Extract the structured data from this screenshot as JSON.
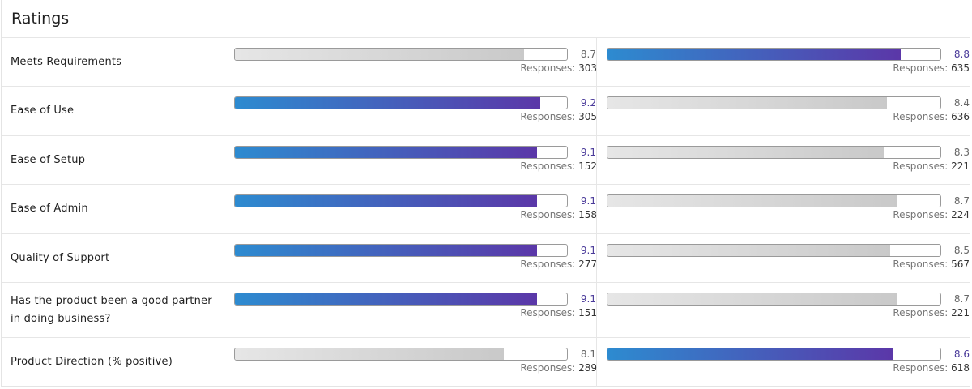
{
  "title": "Ratings",
  "responses_label": "Responses:",
  "colors": {
    "winner_start": "#2d8bd0",
    "winner_end": "#5b37a8",
    "neutral": "#d0d0d0"
  },
  "rows": [
    {
      "label": "Meets Requirements",
      "a": {
        "value": "8.7",
        "responses": "303",
        "winner": false
      },
      "b": {
        "value": "8.8",
        "responses": "635",
        "winner": true
      }
    },
    {
      "label": "Ease of Use",
      "a": {
        "value": "9.2",
        "responses": "305",
        "winner": true
      },
      "b": {
        "value": "8.4",
        "responses": "636",
        "winner": false
      }
    },
    {
      "label": "Ease of Setup",
      "a": {
        "value": "9.1",
        "responses": "152",
        "winner": true
      },
      "b": {
        "value": "8.3",
        "responses": "221",
        "winner": false
      }
    },
    {
      "label": "Ease of Admin",
      "a": {
        "value": "9.1",
        "responses": "158",
        "winner": true
      },
      "b": {
        "value": "8.7",
        "responses": "224",
        "winner": false
      }
    },
    {
      "label": "Quality of Support",
      "a": {
        "value": "9.1",
        "responses": "277",
        "winner": true
      },
      "b": {
        "value": "8.5",
        "responses": "567",
        "winner": false
      }
    },
    {
      "label": "Has the product been a good partner in doing business?",
      "a": {
        "value": "9.1",
        "responses": "151",
        "winner": true
      },
      "b": {
        "value": "8.7",
        "responses": "221",
        "winner": false
      }
    },
    {
      "label": "Product Direction (% positive)",
      "a": {
        "value": "8.1",
        "responses": "289",
        "winner": false
      },
      "b": {
        "value": "8.6",
        "responses": "618",
        "winner": true
      }
    }
  ]
}
